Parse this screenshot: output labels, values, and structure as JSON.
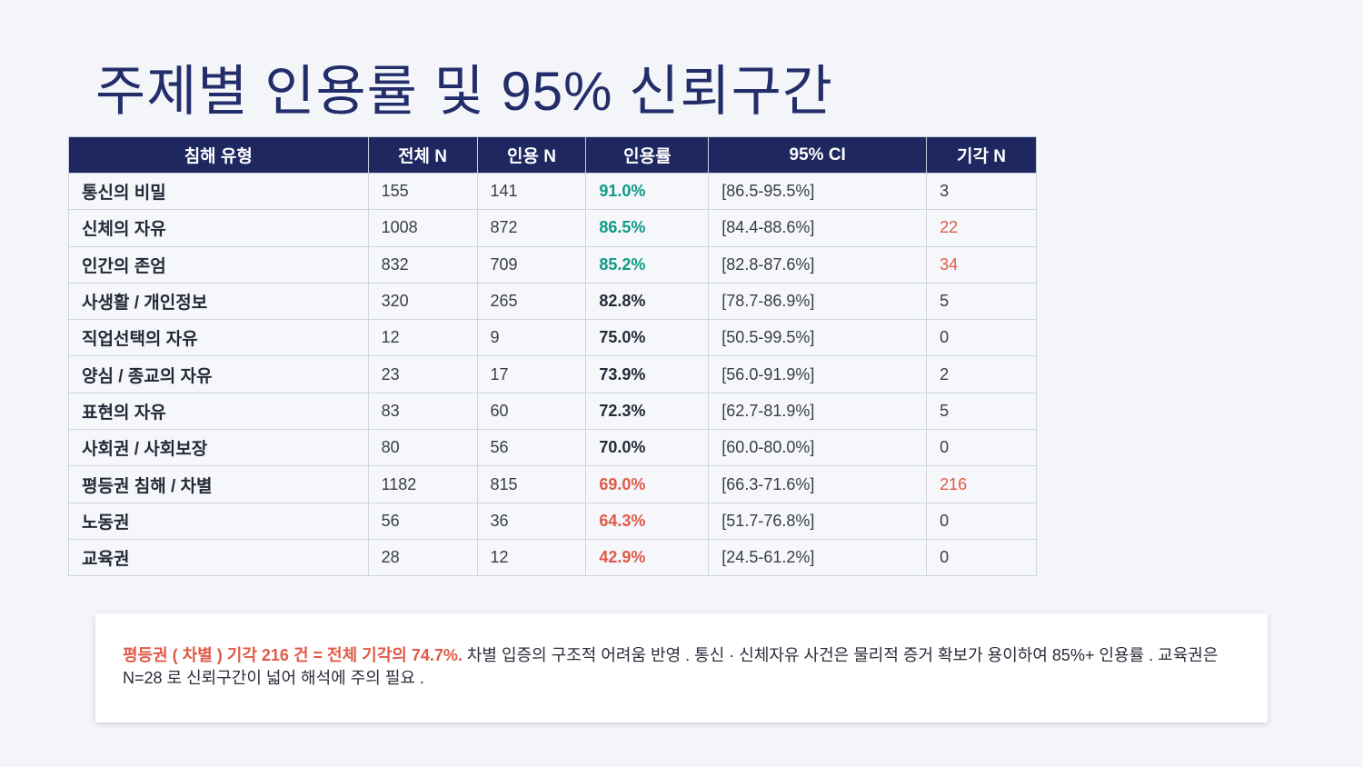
{
  "title": "주제별 인용률 및 95% 신뢰구간",
  "colors": {
    "header": "#1e2760",
    "high": "#0e9a86",
    "low": "#e05a47",
    "normal": "#262a38"
  },
  "table": {
    "headers": [
      "침해 유형",
      "전체 N",
      "인용 N",
      "인용률",
      "95% CI",
      "기각 N"
    ],
    "rows": [
      {
        "type": "통신의 비밀",
        "total": "155",
        "cited": "141",
        "rate": "91.0%",
        "ci": "[86.5-95.5%]",
        "rejected": "3",
        "rate_level": "high",
        "rej_hl": false
      },
      {
        "type": "신체의 자유",
        "total": "1008",
        "cited": "872",
        "rate": "86.5%",
        "ci": "[84.4-88.6%]",
        "rejected": "22",
        "rate_level": "high",
        "rej_hl": true
      },
      {
        "type": "인간의 존엄",
        "total": "832",
        "cited": "709",
        "rate": "85.2%",
        "ci": "[82.8-87.6%]",
        "rejected": "34",
        "rate_level": "high",
        "rej_hl": true
      },
      {
        "type": "사생활 / 개인정보",
        "total": "320",
        "cited": "265",
        "rate": "82.8%",
        "ci": "[78.7-86.9%]",
        "rejected": "5",
        "rate_level": "normal",
        "rej_hl": false
      },
      {
        "type": "직업선택의 자유",
        "total": "12",
        "cited": "9",
        "rate": "75.0%",
        "ci": "[50.5-99.5%]",
        "rejected": "0",
        "rate_level": "normal",
        "rej_hl": false
      },
      {
        "type": "양심 / 종교의 자유",
        "total": "23",
        "cited": "17",
        "rate": "73.9%",
        "ci": "[56.0-91.9%]",
        "rejected": "2",
        "rate_level": "normal",
        "rej_hl": false
      },
      {
        "type": "표현의 자유",
        "total": "83",
        "cited": "60",
        "rate": "72.3%",
        "ci": "[62.7-81.9%]",
        "rejected": "5",
        "rate_level": "normal",
        "rej_hl": false
      },
      {
        "type": "사회권 / 사회보장",
        "total": "80",
        "cited": "56",
        "rate": "70.0%",
        "ci": "[60.0-80.0%]",
        "rejected": "0",
        "rate_level": "normal",
        "rej_hl": false
      },
      {
        "type": "평등권 침해 / 차별",
        "total": "1182",
        "cited": "815",
        "rate": "69.0%",
        "ci": "[66.3-71.6%]",
        "rejected": "216",
        "rate_level": "low",
        "rej_hl": true
      },
      {
        "type": "노동권",
        "total": "56",
        "cited": "36",
        "rate": "64.3%",
        "ci": "[51.7-76.8%]",
        "rejected": "0",
        "rate_level": "low",
        "rej_hl": false
      },
      {
        "type": "교육권",
        "total": "28",
        "cited": "12",
        "rate": "42.9%",
        "ci": "[24.5-61.2%]",
        "rejected": "0",
        "rate_level": "low",
        "rej_hl": false
      }
    ]
  },
  "note": {
    "highlight": "평등권 ( 차별 ) 기각  216 건  =  전체 기각의  74.7%.",
    "text": " 차별 입증의 구조적 어려움 반영 .  통신 · 신체자유 사건은 물리적 증거 확보가 용이하여  85%+ 인용률 .  교육권은  N=28 로 신뢰구간이 넓어 해석에 주의 필요 ."
  }
}
